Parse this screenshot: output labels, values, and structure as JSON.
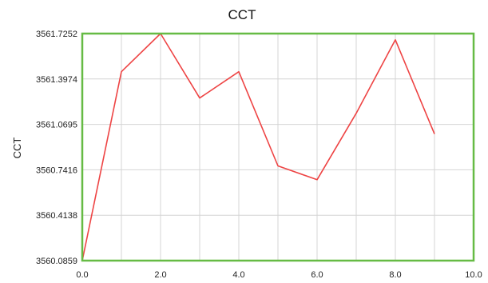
{
  "chart_data": {
    "type": "line",
    "title": "CCT",
    "xlabel": "",
    "ylabel": "CCT",
    "xlim": [
      0,
      10
    ],
    "ylim": [
      3560.0859,
      3561.7252
    ],
    "x_ticks": [
      "0.0",
      "2.0",
      "4.0",
      "6.0",
      "8.0",
      "10.0"
    ],
    "x_tick_values": [
      0,
      2,
      4,
      6,
      8,
      10
    ],
    "y_ticks": [
      "3561.7252",
      "3561.3974",
      "3561.0695",
      "3560.7416",
      "3560.4138",
      "3560.0859"
    ],
    "y_tick_values": [
      3561.7252,
      3561.3974,
      3561.0695,
      3560.7416,
      3560.4138,
      3560.0859
    ],
    "x_minor_gridlines": [
      1,
      3,
      5,
      7,
      9
    ],
    "grid": true,
    "legend": "none",
    "series": [
      {
        "x": [
          0,
          1,
          2,
          3,
          4,
          5,
          6,
          7,
          8,
          9
        ],
        "values": [
          3560.0859,
          3561.45,
          3561.7252,
          3561.26,
          3561.45,
          3560.77,
          3560.67,
          3561.15,
          3561.68,
          3561.0
        ]
      }
    ],
    "colors": {
      "line": "#ee4444",
      "frame": "#66bb44",
      "grid": "#d4d4d4"
    }
  }
}
